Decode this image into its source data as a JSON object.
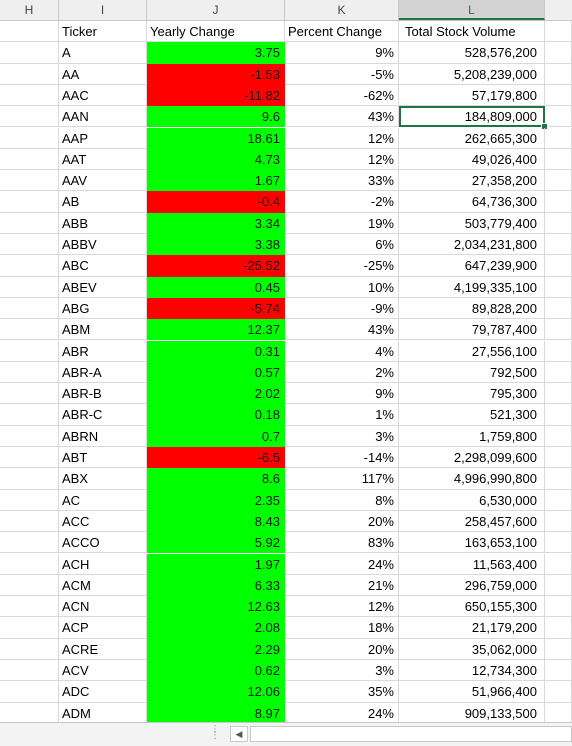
{
  "columns": [
    "H",
    "I",
    "J",
    "K",
    "L"
  ],
  "selected_column": "L",
  "headers": {
    "ticker": "Ticker",
    "yearly": "Yearly Change",
    "percent": "Percent Change",
    "volume": "Total Stock Volume"
  },
  "colors": {
    "positive": "#00ff00",
    "negative": "#ff0000",
    "selection": "#217346"
  },
  "rows": [
    {
      "ticker": "A",
      "yearly": "3.75",
      "percent": "9%",
      "volume": "528,576,200",
      "dir": "pos"
    },
    {
      "ticker": "AA",
      "yearly": "-1.53",
      "percent": "-5%",
      "volume": "5,208,239,000",
      "dir": "neg"
    },
    {
      "ticker": "AAC",
      "yearly": "-11.82",
      "percent": "-62%",
      "volume": "57,179,800",
      "dir": "neg"
    },
    {
      "ticker": "AAN",
      "yearly": "9.6",
      "percent": "43%",
      "volume": "184,809,000",
      "dir": "pos",
      "selected": true
    },
    {
      "ticker": "AAP",
      "yearly": "18.61",
      "percent": "12%",
      "volume": "262,665,300",
      "dir": "pos"
    },
    {
      "ticker": "AAT",
      "yearly": "4.73",
      "percent": "12%",
      "volume": "49,026,400",
      "dir": "pos"
    },
    {
      "ticker": "AAV",
      "yearly": "1.67",
      "percent": "33%",
      "volume": "27,358,200",
      "dir": "pos"
    },
    {
      "ticker": "AB",
      "yearly": "-0.4",
      "percent": "-2%",
      "volume": "64,736,300",
      "dir": "neg"
    },
    {
      "ticker": "ABB",
      "yearly": "3.34",
      "percent": "19%",
      "volume": "503,779,400",
      "dir": "pos"
    },
    {
      "ticker": "ABBV",
      "yearly": "3.38",
      "percent": "6%",
      "volume": "2,034,231,800",
      "dir": "pos"
    },
    {
      "ticker": "ABC",
      "yearly": "-25.52",
      "percent": "-25%",
      "volume": "647,239,900",
      "dir": "neg"
    },
    {
      "ticker": "ABEV",
      "yearly": "0.45",
      "percent": "10%",
      "volume": "4,199,335,100",
      "dir": "pos"
    },
    {
      "ticker": "ABG",
      "yearly": "-5.74",
      "percent": "-9%",
      "volume": "89,828,200",
      "dir": "neg"
    },
    {
      "ticker": "ABM",
      "yearly": "12.37",
      "percent": "43%",
      "volume": "79,787,400",
      "dir": "pos"
    },
    {
      "ticker": "ABR",
      "yearly": "0.31",
      "percent": "4%",
      "volume": "27,556,100",
      "dir": "pos"
    },
    {
      "ticker": "ABR-A",
      "yearly": "0.57",
      "percent": "2%",
      "volume": "792,500",
      "dir": "pos"
    },
    {
      "ticker": "ABR-B",
      "yearly": "2.02",
      "percent": "9%",
      "volume": "795,300",
      "dir": "pos"
    },
    {
      "ticker": "ABR-C",
      "yearly": "0.18",
      "percent": "1%",
      "volume": "521,300",
      "dir": "pos"
    },
    {
      "ticker": "ABRN",
      "yearly": "0.7",
      "percent": "3%",
      "volume": "1,759,800",
      "dir": "pos"
    },
    {
      "ticker": "ABT",
      "yearly": "-6.5",
      "percent": "-14%",
      "volume": "2,298,099,600",
      "dir": "neg"
    },
    {
      "ticker": "ABX",
      "yearly": "8.6",
      "percent": "117%",
      "volume": "4,996,990,800",
      "dir": "pos"
    },
    {
      "ticker": "AC",
      "yearly": "2.35",
      "percent": "8%",
      "volume": "6,530,000",
      "dir": "pos"
    },
    {
      "ticker": "ACC",
      "yearly": "8.43",
      "percent": "20%",
      "volume": "258,457,600",
      "dir": "pos"
    },
    {
      "ticker": "ACCO",
      "yearly": "5.92",
      "percent": "83%",
      "volume": "163,653,100",
      "dir": "pos"
    },
    {
      "ticker": "ACH",
      "yearly": "1.97",
      "percent": "24%",
      "volume": "11,563,400",
      "dir": "pos"
    },
    {
      "ticker": "ACM",
      "yearly": "6.33",
      "percent": "21%",
      "volume": "296,759,000",
      "dir": "pos"
    },
    {
      "ticker": "ACN",
      "yearly": "12.63",
      "percent": "12%",
      "volume": "650,155,300",
      "dir": "pos"
    },
    {
      "ticker": "ACP",
      "yearly": "2.08",
      "percent": "18%",
      "volume": "21,179,200",
      "dir": "pos"
    },
    {
      "ticker": "ACRE",
      "yearly": "2.29",
      "percent": "20%",
      "volume": "35,062,000",
      "dir": "pos"
    },
    {
      "ticker": "ACV",
      "yearly": "0.62",
      "percent": "3%",
      "volume": "12,734,300",
      "dir": "pos"
    },
    {
      "ticker": "ADC",
      "yearly": "12.06",
      "percent": "35%",
      "volume": "51,966,400",
      "dir": "pos"
    },
    {
      "ticker": "ADM",
      "yearly": "8.97",
      "percent": "24%",
      "volume": "909,133,500",
      "dir": "pos"
    }
  ],
  "icons": {
    "sheet_dots": "vertical-dots-icon",
    "scroll_left": "triangle-left-icon"
  },
  "scroll_left_glyph": "◀"
}
